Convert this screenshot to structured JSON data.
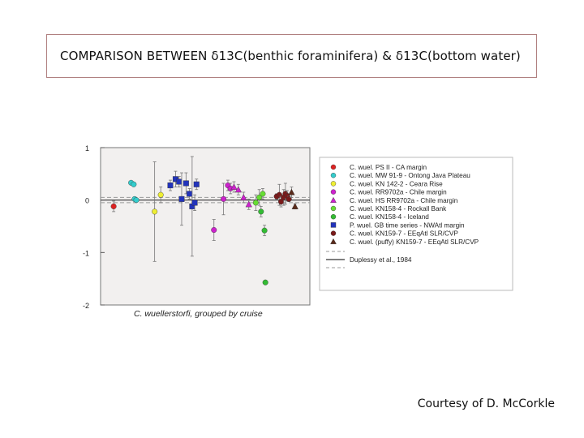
{
  "title": "COMPARISON BETWEEN δ13C(benthic foraminifera) & δ13C(bottom water)",
  "credit": "Courtesy of D. McCorkle",
  "chart_data": {
    "type": "scatter",
    "xlabel": "C. wuellerstorfi, grouped by cruise",
    "ylim": [
      -2,
      1
    ],
    "yticks": [
      1,
      0,
      -1,
      -2
    ],
    "ytick_labels": [
      "1",
      "0",
      "-1",
      "-2"
    ],
    "grid": false,
    "legend_position": "right",
    "reference_lines": [
      {
        "name": "",
        "y": 0.05,
        "style": "dashed",
        "color": "#999999"
      },
      {
        "name": "Duplessy et al., 1984",
        "y": 0.0,
        "style": "solid",
        "color": "#333333"
      },
      {
        "name": "",
        "y": -0.05,
        "style": "dashed",
        "color": "#999999"
      }
    ],
    "series": [
      {
        "name": "C. wuel. PS II - CA margin",
        "marker": "circle",
        "color": "#dd2222",
        "x": [
          1.5
        ],
        "y": [
          -0.12
        ],
        "err": [
          0.1
        ]
      },
      {
        "name": "C. wuel. MW 91-9 - Ontong Java Plateau",
        "marker": "circle",
        "color": "#33cccc",
        "x": [
          3.5,
          3.8,
          3.9,
          4.1
        ],
        "y": [
          0.33,
          0.3,
          0.02,
          0.0
        ],
        "err": [
          0,
          0,
          0,
          0
        ]
      },
      {
        "name": "C. wuel. KN 142-2 - Ceara Rise",
        "marker": "circle",
        "color": "#eeee33",
        "x": [
          6.2,
          6.9
        ],
        "y": [
          -0.22,
          0.1
        ],
        "err": [
          0.95,
          0.15
        ]
      },
      {
        "name": "C. wuel. RR9702a - Chile margin",
        "marker": "circle",
        "color": "#cc22cc",
        "x": [
          13.0,
          14.1,
          14.6,
          14.9
        ],
        "y": [
          -0.57,
          0.02,
          0.28,
          0.22
        ],
        "err": [
          0.2,
          0.3,
          0.1,
          0.1
        ]
      },
      {
        "name": "C. wuel. HS RR9702a - Chile margin",
        "marker": "triangle",
        "color": "#cc22cc",
        "x": [
          15.3,
          15.8,
          16.4,
          17.0
        ],
        "y": [
          0.25,
          0.2,
          0.05,
          -0.08
        ],
        "err": [
          0.1,
          0.1,
          0.1,
          0.1
        ]
      },
      {
        "name": "C. wuel. KN158-4 - Rockall Bank",
        "marker": "circle",
        "color": "#66dd33",
        "x": [
          17.8,
          18.2,
          18.6
        ],
        "y": [
          -0.05,
          0.05,
          0.12
        ],
        "err": [
          0.15,
          0.15,
          0.1
        ]
      },
      {
        "name": "C. wuel. KN158-4 - Iceland",
        "marker": "circle",
        "color": "#33bb33",
        "x": [
          18.4,
          18.8,
          18.9
        ],
        "y": [
          -0.22,
          -0.58,
          -1.57
        ],
        "err": [
          0.1,
          0.1,
          0
        ]
      },
      {
        "name": "P. wuel. GB time series - NWAtl margin",
        "marker": "square",
        "color": "#2233bb",
        "x": [
          8.0,
          8.6,
          9.0,
          9.3,
          9.8,
          10.2,
          10.5,
          10.8,
          11.0
        ],
        "y": [
          0.28,
          0.4,
          0.35,
          0.02,
          0.32,
          0.12,
          -0.12,
          -0.05,
          0.3
        ],
        "err": [
          0.1,
          0.15,
          0.1,
          0.5,
          0.2,
          0.1,
          0.95,
          0.15,
          0.1
        ]
      },
      {
        "name": "C. wuel. KN159-7 - EEqAtl SLR/CVP",
        "marker": "circle",
        "color": "#7a1a1a",
        "x": [
          20.2,
          20.5,
          20.7,
          21.0,
          21.2,
          21.4,
          21.6
        ],
        "y": [
          0.07,
          0.1,
          -0.03,
          0.05,
          0.12,
          0.08,
          0.02
        ],
        "err": [
          0.05,
          0.2,
          0.1,
          0.15,
          0.2,
          0.1,
          0.05
        ]
      },
      {
        "name": "C. wuel. (puffy) KN159-7 - EEqAtl SLR/CVP",
        "marker": "triangle",
        "color": "#5a2a1a",
        "x": [
          21.9,
          22.3
        ],
        "y": [
          0.15,
          -0.12
        ],
        "err": [
          0.1,
          0.05
        ]
      }
    ]
  }
}
